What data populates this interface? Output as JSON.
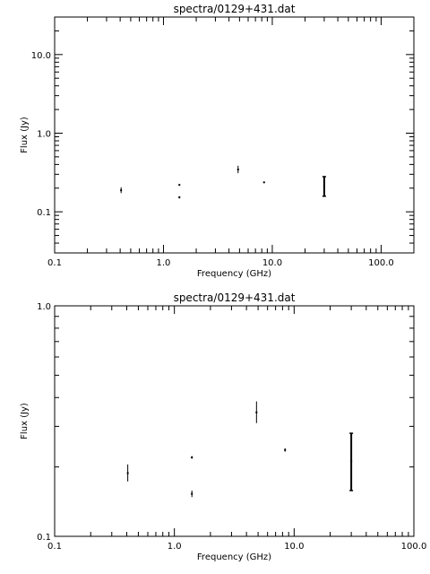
{
  "chart_data": [
    {
      "type": "scatter",
      "title": "spectra/0129+431.dat",
      "xlabel": "Frequency (GHz)",
      "ylabel": "Flux (Jy)",
      "xscale": "log",
      "yscale": "log",
      "xlim": [
        0.1,
        200
      ],
      "ylim": [
        0.03,
        30
      ],
      "xticks": [
        {
          "value": 0.1,
          "label": "0.1"
        },
        {
          "value": 1,
          "label": "1.0"
        },
        {
          "value": 10,
          "label": "10.0"
        },
        {
          "value": 100,
          "label": "100.0"
        }
      ],
      "yticks": [
        {
          "value": 0.1,
          "label": "0.1"
        },
        {
          "value": 1,
          "label": "1.0"
        },
        {
          "value": 10,
          "label": "10.0"
        }
      ],
      "grid": false,
      "points": [
        {
          "x": 0.408,
          "y": 0.188,
          "yerr_low": 0.173,
          "yerr_high": 0.205
        },
        {
          "x": 1.4,
          "y": 0.22,
          "yerr_low": 0.217,
          "yerr_high": 0.223
        },
        {
          "x": 1.4,
          "y": 0.153,
          "yerr_low": 0.148,
          "yerr_high": 0.158
        },
        {
          "x": 4.85,
          "y": 0.345,
          "yerr_low": 0.31,
          "yerr_high": 0.385
        },
        {
          "x": 8.4,
          "y": 0.237,
          "yerr_low": 0.233,
          "yerr_high": 0.241
        },
        {
          "x": 30,
          "y": 0.212,
          "yerr_low": 0.158,
          "yerr_high": 0.28
        }
      ]
    },
    {
      "type": "scatter",
      "title": "spectra/0129+431.dat",
      "xlabel": "Frequency (GHz)",
      "ylabel": "Flux (Jy)",
      "xscale": "log",
      "yscale": "log",
      "xlim": [
        0.1,
        100
      ],
      "ylim": [
        0.1,
        1.0
      ],
      "xticks": [
        {
          "value": 0.1,
          "label": "0.1"
        },
        {
          "value": 1,
          "label": "1.0"
        },
        {
          "value": 10,
          "label": "10.0"
        },
        {
          "value": 100,
          "label": "100.0"
        }
      ],
      "yticks": [
        {
          "value": 0.1,
          "label": "0.1"
        },
        {
          "value": 1,
          "label": "1.0"
        }
      ],
      "grid": false,
      "points": [
        {
          "x": 0.408,
          "y": 0.188,
          "yerr_low": 0.173,
          "yerr_high": 0.205
        },
        {
          "x": 1.4,
          "y": 0.22,
          "yerr_low": 0.217,
          "yerr_high": 0.223
        },
        {
          "x": 1.4,
          "y": 0.153,
          "yerr_low": 0.148,
          "yerr_high": 0.158
        },
        {
          "x": 4.85,
          "y": 0.345,
          "yerr_low": 0.31,
          "yerr_high": 0.385
        },
        {
          "x": 8.4,
          "y": 0.237,
          "yerr_low": 0.233,
          "yerr_high": 0.241
        },
        {
          "x": 30,
          "y": 0.212,
          "yerr_low": 0.158,
          "yerr_high": 0.28
        }
      ]
    }
  ]
}
